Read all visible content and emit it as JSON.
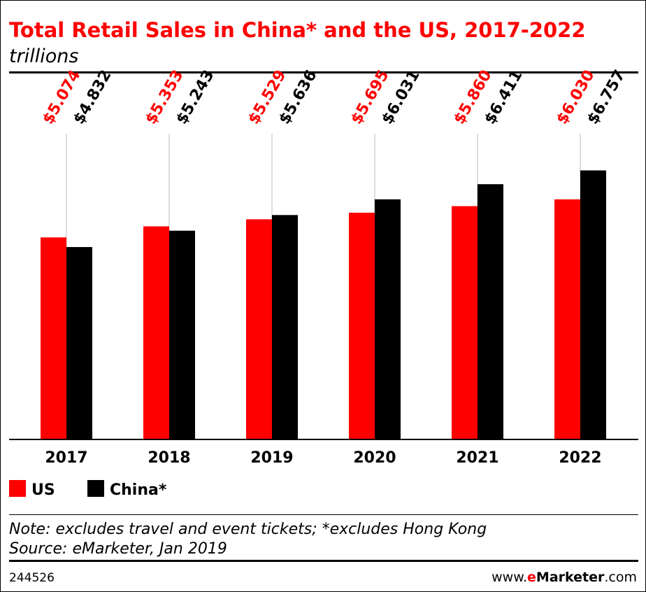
{
  "chart_data": {
    "type": "bar",
    "title": "Total Retail Sales in China* and the US, 2017-2022",
    "subtitle": "trillions",
    "categories": [
      "2017",
      "2018",
      "2019",
      "2020",
      "2021",
      "2022"
    ],
    "series": [
      {
        "name": "US",
        "color": "#ff0000",
        "values": [
          5.074,
          5.353,
          5.529,
          5.695,
          5.86,
          6.03
        ],
        "labels": [
          "$5.074",
          "$5.353",
          "$5.529",
          "$5.695",
          "$5.860",
          "$6.030"
        ]
      },
      {
        "name": "China*",
        "color": "#000000",
        "values": [
          4.832,
          5.243,
          5.636,
          6.031,
          6.411,
          6.757
        ],
        "labels": [
          "$4.832",
          "$5.243",
          "$5.636",
          "$6.031",
          "$6.411",
          "$6.757"
        ]
      }
    ],
    "ylim": [
      0,
      7.67
    ],
    "grid": false,
    "legend": "bottom-left",
    "note": "Note: excludes travel and event tickets; *excludes Hong Kong",
    "source": "Source: eMarketer, Jan 2019",
    "chart_id": "244526",
    "brand": {
      "prefix": "www.",
      "e": "e",
      "name": "Marketer",
      "suffix": ".com"
    }
  }
}
